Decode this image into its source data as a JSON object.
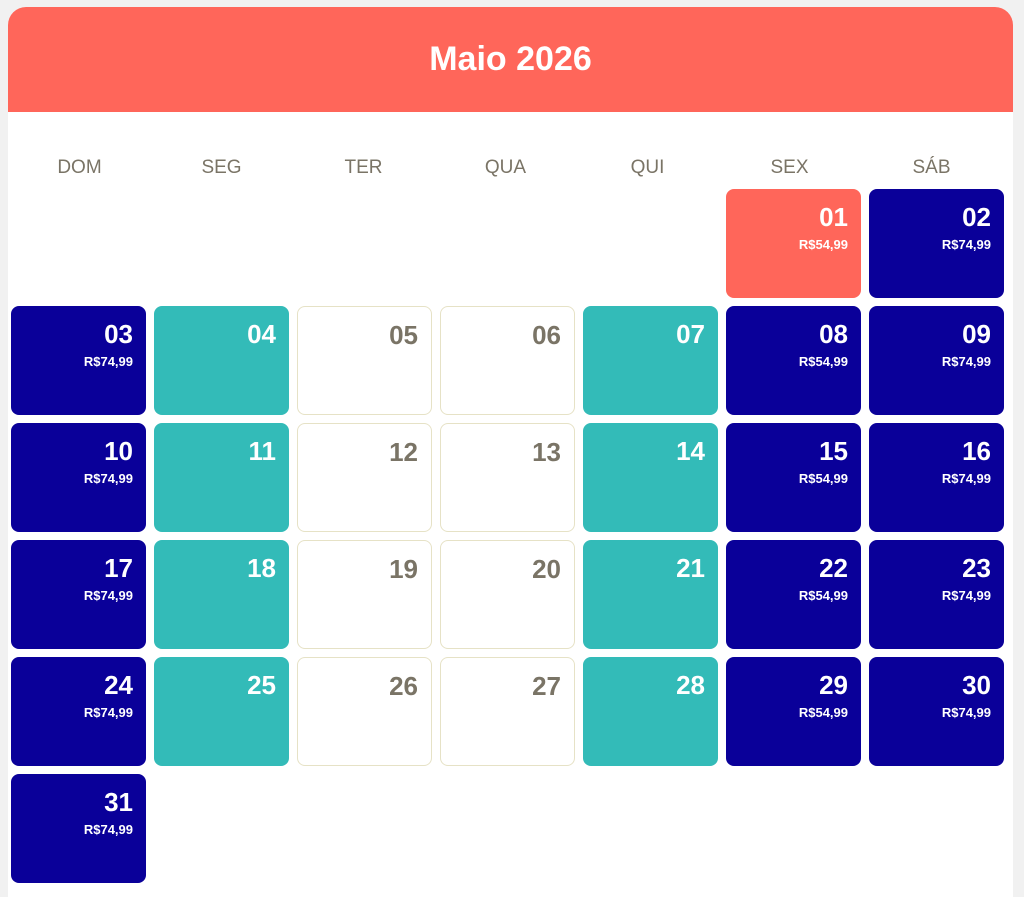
{
  "header": {
    "title": "Maio 2026"
  },
  "weekdays": [
    "DOM",
    "SEG",
    "TER",
    "QUA",
    "QUI",
    "SEX",
    "SÁB"
  ],
  "colors": {
    "header": "#ff665a",
    "available": "#0a0099",
    "teal": "#33bbb8",
    "selected": "#ff665a",
    "unavailable": "#ffffff"
  },
  "leading_blanks": 5,
  "days": [
    {
      "day": "01",
      "type": "coral",
      "price": "R$54,99"
    },
    {
      "day": "02",
      "type": "dark",
      "price": "R$74,99"
    },
    {
      "day": "03",
      "type": "dark",
      "price": "R$74,99"
    },
    {
      "day": "04",
      "type": "teal",
      "price": ""
    },
    {
      "day": "05",
      "type": "white",
      "price": ""
    },
    {
      "day": "06",
      "type": "white",
      "price": ""
    },
    {
      "day": "07",
      "type": "teal",
      "price": ""
    },
    {
      "day": "08",
      "type": "dark",
      "price": "R$54,99"
    },
    {
      "day": "09",
      "type": "dark",
      "price": "R$74,99"
    },
    {
      "day": "10",
      "type": "dark",
      "price": "R$74,99"
    },
    {
      "day": "11",
      "type": "teal",
      "price": ""
    },
    {
      "day": "12",
      "type": "white",
      "price": ""
    },
    {
      "day": "13",
      "type": "white",
      "price": ""
    },
    {
      "day": "14",
      "type": "teal",
      "price": ""
    },
    {
      "day": "15",
      "type": "dark",
      "price": "R$54,99"
    },
    {
      "day": "16",
      "type": "dark",
      "price": "R$74,99"
    },
    {
      "day": "17",
      "type": "dark",
      "price": "R$74,99"
    },
    {
      "day": "18",
      "type": "teal",
      "price": ""
    },
    {
      "day": "19",
      "type": "white",
      "price": ""
    },
    {
      "day": "20",
      "type": "white",
      "price": ""
    },
    {
      "day": "21",
      "type": "teal",
      "price": ""
    },
    {
      "day": "22",
      "type": "dark",
      "price": "R$54,99"
    },
    {
      "day": "23",
      "type": "dark",
      "price": "R$74,99"
    },
    {
      "day": "24",
      "type": "dark",
      "price": "R$74,99"
    },
    {
      "day": "25",
      "type": "teal",
      "price": ""
    },
    {
      "day": "26",
      "type": "white",
      "price": ""
    },
    {
      "day": "27",
      "type": "white",
      "price": ""
    },
    {
      "day": "28",
      "type": "teal",
      "price": ""
    },
    {
      "day": "29",
      "type": "dark",
      "price": "R$54,99"
    },
    {
      "day": "30",
      "type": "dark",
      "price": "R$74,99"
    },
    {
      "day": "31",
      "type": "dark",
      "price": "R$74,99"
    }
  ]
}
